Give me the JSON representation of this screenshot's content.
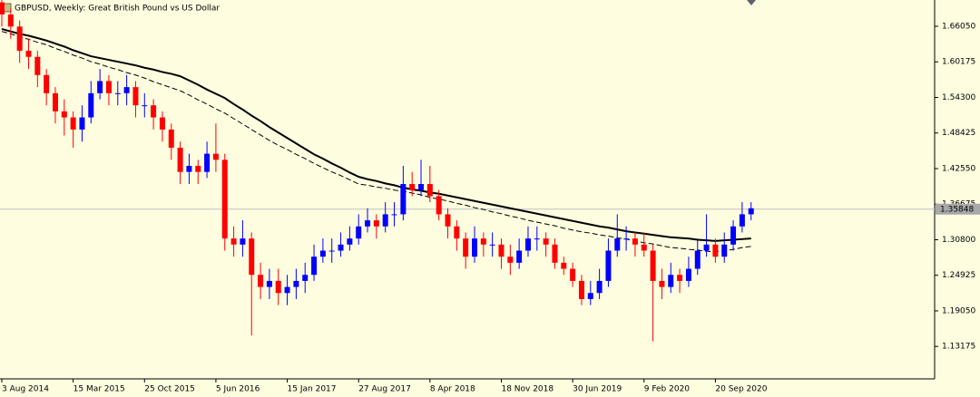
{
  "chart_data": {
    "type": "candlestick",
    "title": "GBPUSD, Weekly:  Great British Pound vs US Dollar",
    "categories": [
      "3 Aug 2014",
      null,
      null,
      null,
      null,
      null,
      null,
      null,
      "15 Mar 2015",
      null,
      null,
      null,
      null,
      null,
      null,
      null,
      "25 Oct 2015",
      null,
      null,
      null,
      null,
      null,
      null,
      null,
      "5 Jun 2016",
      null,
      null,
      null,
      null,
      null,
      null,
      null,
      "15 Jan 2017",
      null,
      null,
      null,
      null,
      null,
      null,
      null,
      "27 Aug 2017",
      null,
      null,
      null,
      null,
      null,
      null,
      null,
      "8 Apr 2018",
      null,
      null,
      null,
      null,
      null,
      null,
      null,
      "18 Nov 2018",
      null,
      null,
      null,
      null,
      null,
      null,
      null,
      "30 Jun 2019",
      null,
      null,
      null,
      null,
      null,
      null,
      null,
      "9 Feb 2020",
      null,
      null,
      null,
      null,
      null,
      null,
      null,
      "20 Sep 2020",
      null,
      null,
      null,
      null
    ],
    "open": [
      1.7,
      1.68,
      1.66,
      1.62,
      1.61,
      1.58,
      1.55,
      1.52,
      1.51,
      1.49,
      1.51,
      1.55,
      1.57,
      1.55,
      1.55,
      1.56,
      1.53,
      1.53,
      1.51,
      1.49,
      1.46,
      1.42,
      1.43,
      1.42,
      1.45,
      1.44,
      1.31,
      1.3,
      1.31,
      1.25,
      1.23,
      1.24,
      1.22,
      1.23,
      1.24,
      1.25,
      1.28,
      1.29,
      1.29,
      1.3,
      1.31,
      1.33,
      1.34,
      1.33,
      1.35,
      1.35,
      1.4,
      1.39,
      1.4,
      1.38,
      1.35,
      1.33,
      1.31,
      1.28,
      1.31,
      1.3,
      1.3,
      1.28,
      1.27,
      1.29,
      1.31,
      1.31,
      1.3,
      1.27,
      1.26,
      1.24,
      1.21,
      1.22,
      1.24,
      1.29,
      1.31,
      1.31,
      1.3,
      1.29,
      1.24,
      1.23,
      1.25,
      1.24,
      1.26,
      1.29,
      1.3,
      1.28,
      1.3,
      1.33,
      1.35
    ],
    "high": [
      1.71,
      1.69,
      1.67,
      1.64,
      1.62,
      1.59,
      1.56,
      1.54,
      1.52,
      1.53,
      1.57,
      1.59,
      1.58,
      1.57,
      1.58,
      1.57,
      1.55,
      1.54,
      1.52,
      1.5,
      1.47,
      1.45,
      1.44,
      1.47,
      1.5,
      1.45,
      1.33,
      1.34,
      1.32,
      1.27,
      1.26,
      1.26,
      1.25,
      1.26,
      1.27,
      1.3,
      1.31,
      1.31,
      1.32,
      1.33,
      1.35,
      1.36,
      1.35,
      1.37,
      1.37,
      1.43,
      1.42,
      1.44,
      1.43,
      1.39,
      1.36,
      1.34,
      1.32,
      1.33,
      1.32,
      1.32,
      1.31,
      1.3,
      1.31,
      1.33,
      1.33,
      1.32,
      1.31,
      1.28,
      1.27,
      1.25,
      1.24,
      1.26,
      1.31,
      1.35,
      1.33,
      1.32,
      1.32,
      1.3,
      1.26,
      1.27,
      1.26,
      1.28,
      1.31,
      1.35,
      1.31,
      1.32,
      1.34,
      1.37,
      1.37
    ],
    "low": [
      1.66,
      1.64,
      1.6,
      1.59,
      1.56,
      1.53,
      1.5,
      1.48,
      1.46,
      1.47,
      1.5,
      1.54,
      1.53,
      1.53,
      1.53,
      1.51,
      1.51,
      1.49,
      1.47,
      1.44,
      1.4,
      1.4,
      1.4,
      1.41,
      1.42,
      1.29,
      1.28,
      1.28,
      1.15,
      1.21,
      1.21,
      1.2,
      1.2,
      1.21,
      1.22,
      1.24,
      1.27,
      1.27,
      1.28,
      1.29,
      1.3,
      1.32,
      1.31,
      1.32,
      1.33,
      1.34,
      1.38,
      1.38,
      1.37,
      1.34,
      1.31,
      1.29,
      1.26,
      1.27,
      1.28,
      1.28,
      1.26,
      1.25,
      1.26,
      1.28,
      1.29,
      1.28,
      1.26,
      1.25,
      1.23,
      1.2,
      1.2,
      1.21,
      1.23,
      1.28,
      1.29,
      1.28,
      1.28,
      1.14,
      1.21,
      1.22,
      1.22,
      1.23,
      1.25,
      1.28,
      1.27,
      1.27,
      1.29,
      1.32,
      1.34
    ],
    "close": [
      1.68,
      1.66,
      1.62,
      1.61,
      1.58,
      1.55,
      1.52,
      1.51,
      1.49,
      1.51,
      1.55,
      1.57,
      1.55,
      1.55,
      1.56,
      1.53,
      1.53,
      1.51,
      1.49,
      1.46,
      1.42,
      1.43,
      1.42,
      1.45,
      1.44,
      1.31,
      1.3,
      1.31,
      1.25,
      1.23,
      1.24,
      1.22,
      1.23,
      1.24,
      1.25,
      1.28,
      1.29,
      1.29,
      1.3,
      1.31,
      1.33,
      1.34,
      1.33,
      1.35,
      1.35,
      1.4,
      1.39,
      1.4,
      1.38,
      1.35,
      1.33,
      1.31,
      1.28,
      1.31,
      1.3,
      1.3,
      1.28,
      1.27,
      1.29,
      1.31,
      1.31,
      1.3,
      1.27,
      1.26,
      1.24,
      1.21,
      1.22,
      1.24,
      1.29,
      1.31,
      1.31,
      1.3,
      1.29,
      1.24,
      1.23,
      1.25,
      1.24,
      1.26,
      1.29,
      1.3,
      1.28,
      1.3,
      1.33,
      1.35,
      1.36
    ],
    "up_color": "#0000ff",
    "down_color": "#ff0000",
    "series": [
      {
        "color": "#000000",
        "dash": false,
        "values": [
          1.656,
          1.652,
          1.648,
          1.645,
          1.641,
          1.637,
          1.632,
          1.627,
          1.621,
          1.616,
          1.611,
          1.608,
          1.605,
          1.602,
          1.599,
          1.596,
          1.592,
          1.589,
          1.585,
          1.582,
          1.578,
          1.571,
          1.564,
          1.556,
          1.549,
          1.542,
          1.532,
          1.523,
          1.513,
          1.504,
          1.494,
          1.485,
          1.476,
          1.467,
          1.458,
          1.449,
          1.442,
          1.434,
          1.427,
          1.419,
          1.412,
          1.408,
          1.405,
          1.401,
          1.398,
          1.394,
          1.391,
          1.389,
          1.386,
          1.384,
          1.381,
          1.378,
          1.375,
          1.372,
          1.369,
          1.366,
          1.363,
          1.36,
          1.357,
          1.354,
          1.351,
          1.348,
          1.345,
          1.342,
          1.339,
          1.336,
          1.333,
          1.33,
          1.328,
          1.325,
          1.322,
          1.32,
          1.318,
          1.316,
          1.314,
          1.312,
          1.311,
          1.31,
          1.308,
          1.307,
          1.306,
          1.307,
          1.308,
          1.309,
          1.31
        ]
      },
      {
        "color": "#000000",
        "dash": true,
        "values": [
          1.652,
          1.648,
          1.643,
          1.639,
          1.634,
          1.63,
          1.624,
          1.619,
          1.613,
          1.608,
          1.602,
          1.598,
          1.593,
          1.589,
          1.584,
          1.58,
          1.575,
          1.569,
          1.564,
          1.559,
          1.554,
          1.547,
          1.539,
          1.532,
          1.524,
          1.517,
          1.508,
          1.499,
          1.49,
          1.481,
          1.472,
          1.464,
          1.457,
          1.449,
          1.442,
          1.434,
          1.427,
          1.42,
          1.414,
          1.407,
          1.4,
          1.398,
          1.395,
          1.393,
          1.39,
          1.388,
          1.385,
          1.382,
          1.378,
          1.375,
          1.372,
          1.368,
          1.365,
          1.361,
          1.358,
          1.354,
          1.351,
          1.347,
          1.344,
          1.34,
          1.337,
          1.334,
          1.331,
          1.327,
          1.324,
          1.321,
          1.319,
          1.316,
          1.314,
          1.311,
          1.309,
          1.306,
          1.303,
          1.301,
          1.298,
          1.295,
          1.294,
          1.292,
          1.291,
          1.289,
          1.288,
          1.29,
          1.292,
          1.295,
          1.297
        ]
      }
    ],
    "ylim": [
      1.0782,
      1.7039
    ],
    "yticks": [
      {
        "value": 1.6605,
        "label": "1.66050"
      },
      {
        "value": 1.60175,
        "label": "1.60175"
      },
      {
        "value": 1.543,
        "label": "1.54300"
      },
      {
        "value": 1.48425,
        "label": "1.48425"
      },
      {
        "value": 1.4255,
        "label": "1.42550"
      },
      {
        "value": 1.36675,
        "label": "1.36675"
      },
      {
        "value": 1.308,
        "label": "1.30800"
      },
      {
        "value": 1.24925,
        "label": "1.24925"
      },
      {
        "value": 1.1905,
        "label": "1.19050"
      },
      {
        "value": 1.13175,
        "label": "1.13175"
      }
    ],
    "last_price": 1.35848
  }
}
